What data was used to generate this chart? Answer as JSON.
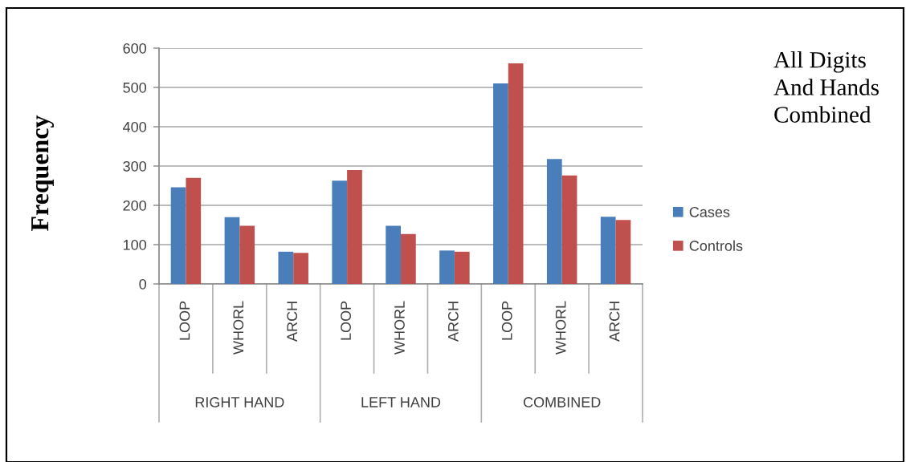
{
  "chart_data": {
    "type": "bar",
    "title": "All Digits\nAnd Hands\nCombined",
    "ylabel": "Frequency",
    "categories": [
      "LOOP",
      "WHORL",
      "ARCH",
      "LOOP",
      "WHORL",
      "ARCH",
      "LOOP",
      "WHORL",
      "ARCH"
    ],
    "annotations": [
      "RIGHT HAND",
      "LEFT HAND",
      "COMBINED"
    ],
    "series": [
      {
        "name": "Cases",
        "color": "#4a7ebb",
        "values": [
          246,
          170,
          82,
          263,
          148,
          85,
          510,
          318,
          171
        ]
      },
      {
        "name": "Controls",
        "color": "#c0504d",
        "values": [
          270,
          148,
          79,
          290,
          127,
          82,
          561,
          276,
          163
        ]
      }
    ],
    "ylim": [
      0,
      600
    ],
    "yticks": [
      0,
      100,
      200,
      300,
      400,
      500,
      600
    ],
    "grid": "y",
    "legend": "right"
  }
}
